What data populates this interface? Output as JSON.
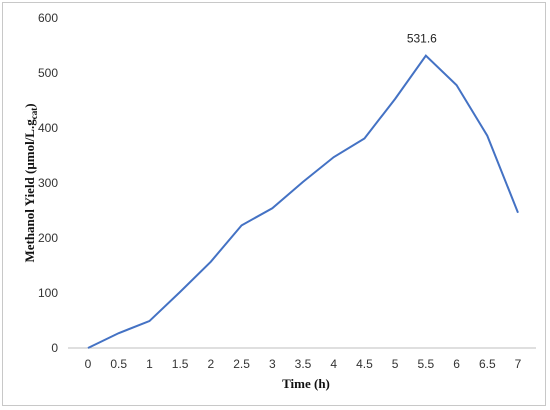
{
  "chart_data": {
    "type": "line",
    "title": "",
    "xlabel": "Time (h)",
    "ylabel": "Methanol Yield (μmol/L.g",
    "ylabel_sub": "cat",
    "ylabel_close": ")",
    "ylim": [
      0,
      600
    ],
    "yticks": [
      0,
      100,
      200,
      300,
      400,
      500,
      600
    ],
    "categories": [
      "0",
      "0.5",
      "1",
      "1.5",
      "2",
      "2.5",
      "3",
      "3.5",
      "4",
      "4.5",
      "5",
      "5.5",
      "6",
      "6.5",
      "7"
    ],
    "series": [
      {
        "color": "#4472c4",
        "values": [
          0,
          27,
          49,
          102,
          157,
          223,
          254,
          302,
          347,
          381,
          453,
          531.6,
          478,
          386,
          246
        ]
      }
    ],
    "annotations": [
      {
        "index": 11,
        "text": "531.6"
      }
    ],
    "grid": false,
    "legend": "none"
  }
}
